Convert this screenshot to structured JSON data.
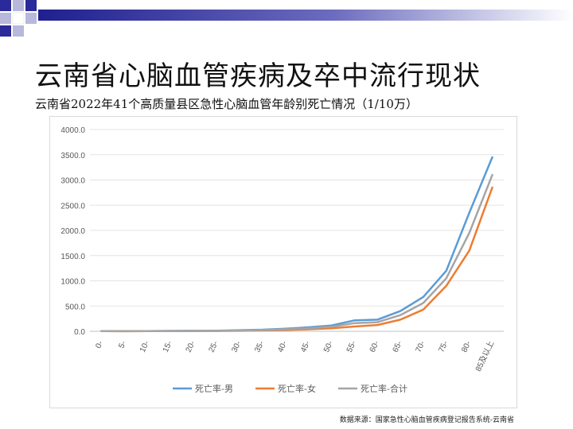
{
  "slide": {
    "title": "云南省心脑血管疾病及卒中流行现状",
    "subtitle": "云南省2022年41个高质量县区急性心脑血管年龄别死亡情况（1/10万）",
    "source": "数据来源：国家急性心脑血管疾病登记报告系统-云南省"
  },
  "chart_data": {
    "type": "line",
    "title": "",
    "xlabel": "",
    "ylabel": "",
    "ylim": [
      0,
      4000
    ],
    "yticks": [
      "0.0",
      "500.0",
      "1000.0",
      "1500.0",
      "2000.0",
      "2500.0",
      "3000.0",
      "3500.0",
      "4000.0"
    ],
    "categories": [
      "0-",
      "5-",
      "10-",
      "15-",
      "20-",
      "25-",
      "30-",
      "35-",
      "40-",
      "45-",
      "50-",
      "55-",
      "60-",
      "65-",
      "70-",
      "75-",
      "80-",
      "85及以上"
    ],
    "series": [
      {
        "name": "死亡率-男",
        "color": "#5b9bd5",
        "values": [
          5,
          3,
          5,
          8,
          10,
          12,
          22,
          32,
          52,
          78,
          115,
          215,
          230,
          400,
          680,
          1200,
          2350,
          3450
        ]
      },
      {
        "name": "死亡率-女",
        "color": "#ed7d31",
        "values": [
          3,
          2,
          3,
          4,
          5,
          6,
          10,
          15,
          25,
          40,
          60,
          95,
          125,
          230,
          430,
          900,
          1600,
          2850
        ]
      },
      {
        "name": "死亡率-合计",
        "color": "#a5a5a5",
        "values": [
          4,
          2,
          4,
          6,
          8,
          9,
          16,
          24,
          40,
          60,
          90,
          160,
          180,
          320,
          560,
          1050,
          1950,
          3100
        ]
      }
    ],
    "grid": true,
    "legend": "bottom"
  }
}
